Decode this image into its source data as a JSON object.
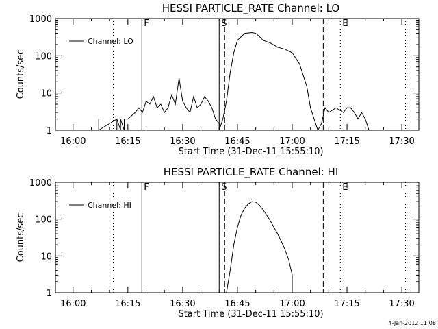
{
  "chart_data": [
    {
      "type": "line",
      "title": "HESSI PARTICLE_RATE Channel: LO",
      "xlabel": "Start Time (31-Dec-11 15:55:10)",
      "ylabel": "Counts/sec",
      "y_scale": "log",
      "ylim": [
        1,
        1000
      ],
      "xlim": [
        "15:55:10",
        "17:34:40"
      ],
      "x_ticks": [
        "16:00",
        "16:15",
        "16:30",
        "16:45",
        "17:00",
        "17:15",
        "17:30"
      ],
      "y_ticks": [
        "1",
        "10",
        "100",
        "1000"
      ],
      "legend": "top-left",
      "grid": false,
      "series": [
        {
          "name": "Channel: LO",
          "x": [
            "16:07",
            "16:07",
            "16:07",
            "16:12",
            "16:12",
            "16:12",
            "16:13",
            "16:13",
            "16:14",
            "16:14",
            "16:15",
            "16:17",
            "16:18",
            "16:19",
            "16:20",
            "16:21",
            "16:22",
            "16:23",
            "16:24",
            "16:25",
            "16:26",
            "16:27",
            "16:28",
            "16:29",
            "16:30",
            "16:31",
            "16:32",
            "16:33",
            "16:34",
            "16:35",
            "16:36",
            "16:37",
            "16:38",
            "16:39",
            "16:40",
            "16:40",
            "16:41",
            "16:42",
            "16:43",
            "16:44",
            "16:45",
            "16:47",
            "16:49",
            "16:50",
            "16:51",
            "16:52",
            "16:54",
            "16:56",
            "16:58",
            "17:00",
            "17:02",
            "17:04",
            "17:05",
            "17:06",
            "17:07",
            "17:08",
            "17:09",
            "17:10",
            "17:12",
            "17:14",
            "17:15",
            "17:16",
            "17:17",
            "17:18",
            "17:19",
            "17:20",
            "17:21"
          ],
          "values": [
            1,
            2,
            1,
            2,
            1,
            2,
            1,
            2,
            1,
            2,
            2,
            3,
            4,
            3,
            6,
            5,
            8,
            4,
            5,
            3,
            4,
            9,
            5,
            25,
            6,
            4,
            3,
            8,
            4,
            5,
            8,
            6,
            4,
            2,
            1.5,
            1,
            2,
            6,
            35,
            120,
            260,
            400,
            420,
            400,
            330,
            260,
            220,
            170,
            150,
            120,
            60,
            15,
            4,
            2,
            1,
            1.5,
            4,
            3,
            4,
            3,
            4,
            4,
            3,
            2,
            3,
            2,
            1
          ]
        }
      ],
      "markers": [
        "F",
        "S",
        "E"
      ]
    },
    {
      "type": "line",
      "title": "HESSI PARTICLE_RATE Channel: HI",
      "xlabel": "Start Time (31-Dec-11 15:55:10)",
      "ylabel": "Counts/sec",
      "y_scale": "log",
      "ylim": [
        1,
        1000
      ],
      "xlim": [
        "15:55:10",
        "17:34:40"
      ],
      "x_ticks": [
        "16:00",
        "16:15",
        "16:30",
        "16:45",
        "17:00",
        "17:15",
        "17:30"
      ],
      "y_ticks": [
        "1",
        "10",
        "100",
        "1000"
      ],
      "legend": "top-left",
      "grid": false,
      "series": [
        {
          "name": "Channel: HI",
          "x": [
            "16:42",
            "16:43",
            "16:44",
            "16:45",
            "16:46",
            "16:47",
            "16:48",
            "16:49",
            "16:50",
            "16:51",
            "16:52",
            "16:53",
            "16:54",
            "16:55",
            "16:56",
            "16:57",
            "16:58",
            "16:59",
            "17:00",
            "17:00"
          ],
          "values": [
            1,
            4,
            20,
            60,
            130,
            200,
            260,
            300,
            290,
            240,
            180,
            130,
            90,
            60,
            40,
            25,
            15,
            8,
            3,
            1
          ]
        }
      ],
      "markers": [
        "F",
        "S",
        "E"
      ]
    }
  ],
  "timestamp": "4-Jan-2012 11:08"
}
